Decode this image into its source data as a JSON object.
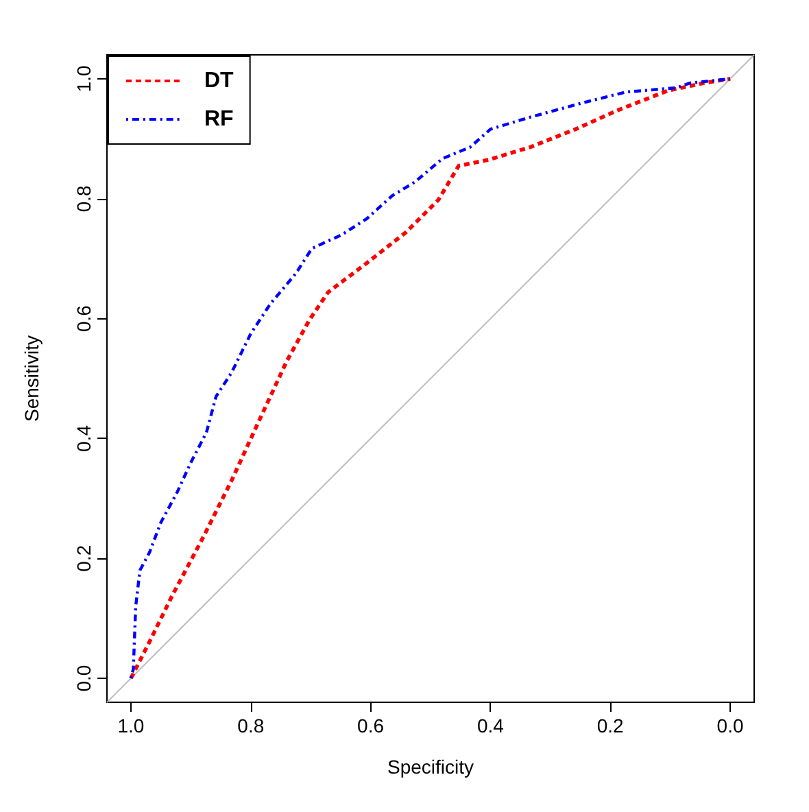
{
  "chart_data": {
    "type": "line",
    "xlabel": "Specificity",
    "ylabel": "Sensitivity",
    "xlim": [
      1.04,
      -0.04
    ],
    "ylim": [
      -0.04,
      1.04
    ],
    "xticks": [
      {
        "value": 1,
        "label": "1.0"
      },
      {
        "value": 0.8,
        "label": "0.8"
      },
      {
        "value": 0.6,
        "label": "0.6"
      },
      {
        "value": 0.4,
        "label": "0.4"
      },
      {
        "value": 0.2,
        "label": "0.2"
      },
      {
        "value": 0,
        "label": "0.0"
      }
    ],
    "yticks": [
      {
        "value": 0,
        "label": "0.0"
      },
      {
        "value": 0.2,
        "label": "0.2"
      },
      {
        "value": 0.4,
        "label": "0.4"
      },
      {
        "value": 0.6,
        "label": "0.6"
      },
      {
        "value": 0.8,
        "label": "0.8"
      },
      {
        "value": 1,
        "label": "1.0"
      }
    ],
    "grid": false,
    "legend": "top left",
    "marker": "none",
    "series": [
      {
        "color": "#bebebe",
        "line_style": "solid",
        "x": [
          1.04,
          -0.04
        ],
        "values": [
          -0.04,
          1.04
        ]
      },
      {
        "name": "DT",
        "color": "#ff0000",
        "line_style": "dashed",
        "x": [
          1,
          0.969,
          0.931,
          0.878,
          0.832,
          0.786,
          0.74,
          0.702,
          0.671,
          0.61,
          0.541,
          0.487,
          0.453,
          0.403,
          0.334,
          0.258,
          0.189,
          0.105,
          0.044,
          0
        ],
        "values": [
          0,
          0.061,
          0.138,
          0.238,
          0.33,
          0.43,
          0.529,
          0.598,
          0.644,
          0.69,
          0.744,
          0.798,
          0.855,
          0.865,
          0.886,
          0.916,
          0.947,
          0.98,
          0.993,
          1
        ]
      },
      {
        "name": "RF",
        "color": "#0000ff",
        "line_style": "dotted",
        "x": [
          1,
          0.996,
          0.992,
          0.985,
          0.969,
          0.95,
          0.923,
          0.9,
          0.874,
          0.858,
          0.832,
          0.8,
          0.767,
          0.725,
          0.698,
          0.648,
          0.606,
          0.564,
          0.526,
          0.48,
          0.434,
          0.4,
          0.334,
          0.25,
          0.174,
          0.09,
          0.067,
          0
        ],
        "values": [
          0,
          0.015,
          0.12,
          0.18,
          0.21,
          0.26,
          0.31,
          0.36,
          0.41,
          0.47,
          0.51,
          0.575,
          0.625,
          0.675,
          0.717,
          0.74,
          0.767,
          0.805,
          0.828,
          0.867,
          0.886,
          0.916,
          0.936,
          0.959,
          0.978,
          0.985,
          0.993,
          1
        ]
      }
    ]
  }
}
